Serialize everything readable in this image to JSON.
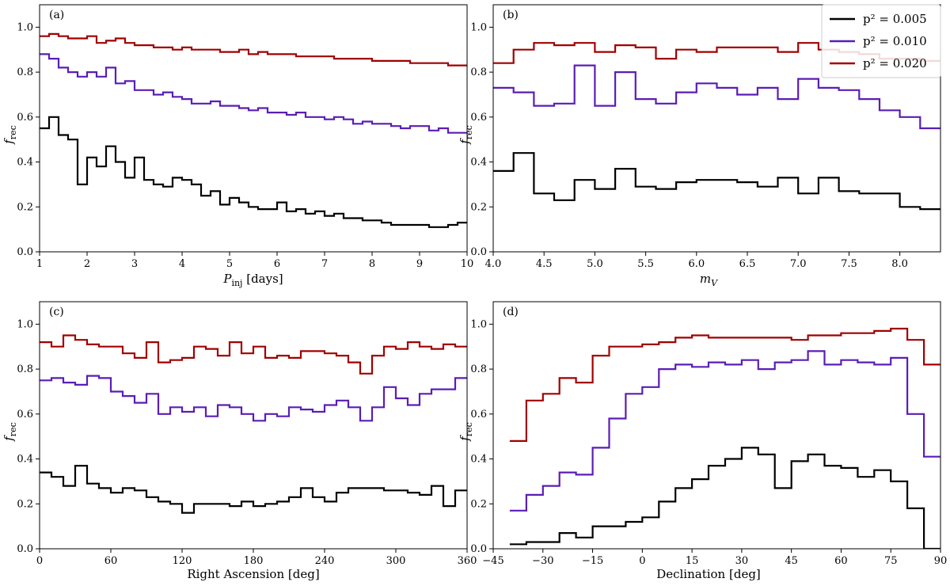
{
  "colors": {
    "p005": "#000000",
    "p010": "#5a1db5",
    "p020": "#a00000"
  },
  "legend": {
    "entries": [
      {
        "label": "p² = 0.005",
        "color": "#000000"
      },
      {
        "label": "p² = 0.010",
        "color": "#5a1db5"
      },
      {
        "label": "p² = 0.020",
        "color": "#a00000"
      }
    ]
  },
  "chart_data": [
    {
      "panel": "(a)",
      "type": "line",
      "step": true,
      "xlabel": "P_inj [days]",
      "ylabel": "f_rec",
      "xlim": [
        1,
        10
      ],
      "ylim": [
        0,
        1.1
      ],
      "xticks": [
        1,
        2,
        3,
        4,
        5,
        6,
        7,
        8,
        9,
        10
      ],
      "xtick_labels": [
        "1",
        "2",
        "3",
        "4",
        "5",
        "6",
        "7",
        "8",
        "9",
        "10"
      ],
      "yticks": [
        0,
        0.2,
        0.4,
        0.6,
        0.8,
        1.0
      ],
      "ytick_labels": [
        "0.0",
        "0.2",
        "0.4",
        "0.6",
        "0.8",
        "1.0"
      ],
      "x": [
        1.0,
        1.2,
        1.4,
        1.6,
        1.8,
        2.0,
        2.2,
        2.4,
        2.6,
        2.8,
        3.0,
        3.2,
        3.4,
        3.6,
        3.8,
        4.0,
        4.2,
        4.4,
        4.6,
        4.8,
        5.0,
        5.2,
        5.4,
        5.6,
        5.8,
        6.0,
        6.2,
        6.4,
        6.6,
        6.8,
        7.0,
        7.2,
        7.4,
        7.6,
        7.8,
        8.0,
        8.2,
        8.4,
        8.6,
        8.8,
        9.0,
        9.2,
        9.4,
        9.6,
        9.8,
        10.0
      ],
      "series": [
        {
          "color": "#000000",
          "values": [
            0.55,
            0.6,
            0.52,
            0.5,
            0.3,
            0.42,
            0.38,
            0.47,
            0.4,
            0.33,
            0.42,
            0.32,
            0.3,
            0.29,
            0.33,
            0.32,
            0.3,
            0.25,
            0.27,
            0.21,
            0.24,
            0.22,
            0.2,
            0.19,
            0.19,
            0.22,
            0.18,
            0.19,
            0.17,
            0.18,
            0.16,
            0.17,
            0.15,
            0.15,
            0.14,
            0.14,
            0.13,
            0.12,
            0.12,
            0.12,
            0.12,
            0.11,
            0.11,
            0.12,
            0.13,
            0.13
          ]
        },
        {
          "color": "#5a1db5",
          "values": [
            0.88,
            0.86,
            0.82,
            0.8,
            0.78,
            0.8,
            0.78,
            0.82,
            0.75,
            0.76,
            0.72,
            0.72,
            0.7,
            0.71,
            0.69,
            0.68,
            0.66,
            0.66,
            0.67,
            0.65,
            0.65,
            0.64,
            0.63,
            0.64,
            0.62,
            0.62,
            0.61,
            0.62,
            0.6,
            0.6,
            0.59,
            0.6,
            0.59,
            0.57,
            0.58,
            0.57,
            0.57,
            0.56,
            0.55,
            0.56,
            0.56,
            0.54,
            0.55,
            0.53,
            0.53,
            0.53
          ]
        },
        {
          "color": "#a00000",
          "values": [
            0.96,
            0.97,
            0.96,
            0.95,
            0.95,
            0.96,
            0.93,
            0.94,
            0.95,
            0.93,
            0.92,
            0.92,
            0.91,
            0.91,
            0.9,
            0.91,
            0.9,
            0.9,
            0.9,
            0.89,
            0.89,
            0.9,
            0.88,
            0.89,
            0.88,
            0.88,
            0.88,
            0.87,
            0.87,
            0.87,
            0.87,
            0.86,
            0.86,
            0.86,
            0.86,
            0.85,
            0.85,
            0.85,
            0.85,
            0.84,
            0.84,
            0.84,
            0.84,
            0.83,
            0.83,
            0.83
          ]
        }
      ]
    },
    {
      "panel": "(b)",
      "type": "line",
      "step": true,
      "xlabel": "m_V",
      "ylabel": "f_rec",
      "xlim": [
        4.0,
        8.4
      ],
      "ylim": [
        0,
        1.1
      ],
      "xticks": [
        4.0,
        4.5,
        5.0,
        5.5,
        6.0,
        6.5,
        7.0,
        7.5,
        8.0
      ],
      "xtick_labels": [
        "4.0",
        "4.5",
        "5.0",
        "5.5",
        "6.0",
        "6.5",
        "7.0",
        "7.5",
        "8.0"
      ],
      "yticks": [
        0,
        0.2,
        0.4,
        0.6,
        0.8,
        1.0
      ],
      "ytick_labels": [
        "0.0",
        "0.2",
        "0.4",
        "0.6",
        "0.8",
        "1.0"
      ],
      "x": [
        4.0,
        4.2,
        4.4,
        4.6,
        4.8,
        5.0,
        5.2,
        5.4,
        5.6,
        5.8,
        6.0,
        6.2,
        6.4,
        6.6,
        6.8,
        7.0,
        7.2,
        7.4,
        7.6,
        7.8,
        8.0,
        8.2,
        8.4
      ],
      "series": [
        {
          "color": "#000000",
          "values": [
            0.36,
            0.44,
            0.26,
            0.23,
            0.32,
            0.28,
            0.37,
            0.29,
            0.28,
            0.31,
            0.32,
            0.32,
            0.31,
            0.29,
            0.33,
            0.26,
            0.33,
            0.27,
            0.26,
            0.26,
            0.2,
            0.19,
            0.14
          ]
        },
        {
          "color": "#5a1db5",
          "values": [
            0.73,
            0.71,
            0.65,
            0.66,
            0.83,
            0.65,
            0.8,
            0.68,
            0.66,
            0.71,
            0.75,
            0.73,
            0.7,
            0.73,
            0.68,
            0.77,
            0.73,
            0.72,
            0.68,
            0.63,
            0.6,
            0.55,
            0.55
          ]
        },
        {
          "color": "#a00000",
          "values": [
            0.84,
            0.9,
            0.93,
            0.92,
            0.93,
            0.89,
            0.92,
            0.91,
            0.86,
            0.9,
            0.89,
            0.91,
            0.91,
            0.91,
            0.89,
            0.93,
            0.9,
            0.89,
            0.88,
            0.86,
            0.86,
            0.85,
            0.85
          ]
        }
      ]
    },
    {
      "panel": "(c)",
      "type": "line",
      "step": true,
      "xlabel": "Right Ascension [deg]",
      "ylabel": "f_rec",
      "xlim": [
        0,
        360
      ],
      "ylim": [
        0,
        1.1
      ],
      "xticks": [
        0,
        60,
        120,
        180,
        240,
        300,
        360
      ],
      "xtick_labels": [
        "0",
        "60",
        "120",
        "180",
        "240",
        "300",
        "360"
      ],
      "yticks": [
        0,
        0.2,
        0.4,
        0.6,
        0.8,
        1.0
      ],
      "ytick_labels": [
        "0.0",
        "0.2",
        "0.4",
        "0.6",
        "0.8",
        "1.0"
      ],
      "x": [
        0,
        10,
        20,
        30,
        40,
        50,
        60,
        70,
        80,
        90,
        100,
        110,
        120,
        130,
        140,
        150,
        160,
        170,
        180,
        190,
        200,
        210,
        220,
        230,
        240,
        250,
        260,
        270,
        280,
        290,
        300,
        310,
        320,
        330,
        340,
        350,
        360
      ],
      "series": [
        {
          "color": "#000000",
          "values": [
            0.34,
            0.32,
            0.28,
            0.37,
            0.29,
            0.27,
            0.25,
            0.27,
            0.26,
            0.23,
            0.21,
            0.2,
            0.16,
            0.2,
            0.2,
            0.2,
            0.19,
            0.21,
            0.19,
            0.2,
            0.21,
            0.23,
            0.27,
            0.23,
            0.21,
            0.25,
            0.27,
            0.27,
            0.27,
            0.26,
            0.26,
            0.25,
            0.24,
            0.28,
            0.19,
            0.26,
            0.26
          ]
        },
        {
          "color": "#5a1db5",
          "values": [
            0.75,
            0.76,
            0.74,
            0.73,
            0.77,
            0.76,
            0.7,
            0.68,
            0.65,
            0.69,
            0.6,
            0.63,
            0.61,
            0.63,
            0.59,
            0.64,
            0.63,
            0.6,
            0.57,
            0.6,
            0.59,
            0.63,
            0.62,
            0.61,
            0.64,
            0.66,
            0.63,
            0.57,
            0.63,
            0.72,
            0.67,
            0.64,
            0.69,
            0.71,
            0.71,
            0.76,
            0.76
          ]
        },
        {
          "color": "#a00000",
          "values": [
            0.92,
            0.9,
            0.95,
            0.93,
            0.91,
            0.9,
            0.9,
            0.87,
            0.85,
            0.92,
            0.83,
            0.84,
            0.85,
            0.9,
            0.89,
            0.86,
            0.92,
            0.87,
            0.9,
            0.85,
            0.86,
            0.85,
            0.88,
            0.88,
            0.87,
            0.86,
            0.83,
            0.78,
            0.86,
            0.9,
            0.89,
            0.92,
            0.9,
            0.89,
            0.91,
            0.9,
            0.9
          ]
        }
      ]
    },
    {
      "panel": "(d)",
      "type": "line",
      "step": true,
      "xlabel": "Declination [deg]",
      "ylabel": "f_rec",
      "xlim": [
        -45,
        90
      ],
      "ylim": [
        0,
        1.1
      ],
      "xticks": [
        -45,
        -30,
        -15,
        0,
        15,
        30,
        45,
        60,
        75,
        90
      ],
      "xtick_labels": [
        "−45",
        "−30",
        "−15",
        "0",
        "15",
        "30",
        "45",
        "60",
        "75",
        "90"
      ],
      "yticks": [
        0,
        0.2,
        0.4,
        0.6,
        0.8,
        1.0
      ],
      "ytick_labels": [
        "0.0",
        "0.2",
        "0.4",
        "0.6",
        "0.8",
        "1.0"
      ],
      "x": [
        -40,
        -35,
        -30,
        -25,
        -20,
        -15,
        -10,
        -5,
        0,
        5,
        10,
        15,
        20,
        25,
        30,
        35,
        40,
        45,
        50,
        55,
        60,
        65,
        70,
        75,
        80,
        85,
        90
      ],
      "series": [
        {
          "color": "#000000",
          "values": [
            0.02,
            0.03,
            0.03,
            0.07,
            0.05,
            0.1,
            0.1,
            0.12,
            0.14,
            0.21,
            0.27,
            0.31,
            0.37,
            0.4,
            0.45,
            0.42,
            0.27,
            0.39,
            0.42,
            0.37,
            0.36,
            0.32,
            0.35,
            0.3,
            0.18,
            0.0,
            0.0
          ]
        },
        {
          "color": "#5a1db5",
          "values": [
            0.17,
            0.24,
            0.28,
            0.34,
            0.33,
            0.45,
            0.58,
            0.69,
            0.72,
            0.8,
            0.82,
            0.81,
            0.83,
            0.82,
            0.84,
            0.8,
            0.83,
            0.84,
            0.88,
            0.82,
            0.84,
            0.83,
            0.82,
            0.85,
            0.6,
            0.41,
            0.41
          ]
        },
        {
          "color": "#a00000",
          "values": [
            0.48,
            0.66,
            0.69,
            0.76,
            0.74,
            0.86,
            0.9,
            0.9,
            0.91,
            0.92,
            0.94,
            0.95,
            0.94,
            0.94,
            0.94,
            0.94,
            0.94,
            0.93,
            0.95,
            0.95,
            0.96,
            0.96,
            0.97,
            0.98,
            0.93,
            0.82,
            0.82
          ]
        }
      ]
    }
  ]
}
